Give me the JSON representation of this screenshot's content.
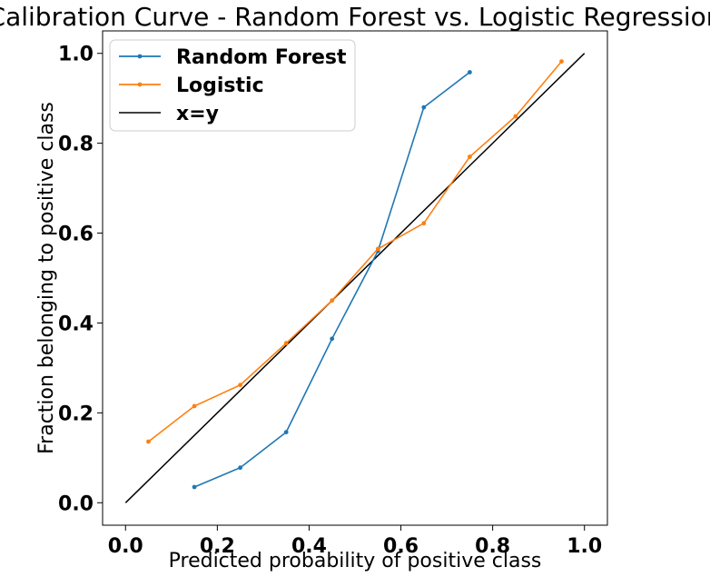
{
  "chart_data": {
    "type": "line",
    "title": "Calibration Curve - Random Forest vs. Logistic Regression",
    "xlabel": "Predicted probability of positive class",
    "ylabel": "Fraction belonging to positive class",
    "xlim": [
      -0.05,
      1.05
    ],
    "ylim": [
      -0.05,
      1.05
    ],
    "xticks": [
      0.0,
      0.2,
      0.4,
      0.6,
      0.8,
      1.0
    ],
    "yticks": [
      0.0,
      0.2,
      0.4,
      0.6,
      0.8,
      1.0
    ],
    "xtick_labels": [
      "0.0",
      "0.2",
      "0.4",
      "0.6",
      "0.8",
      "1.0"
    ],
    "ytick_labels": [
      "0.0",
      "0.2",
      "0.4",
      "0.6",
      "0.8",
      "1.0"
    ],
    "grid": false,
    "legend_position": "top-left",
    "series": [
      {
        "name": "Random Forest",
        "color": "#1f77b4",
        "marker": "dot",
        "x": [
          0.15,
          0.25,
          0.35,
          0.45,
          0.55,
          0.65,
          0.75
        ],
        "y": [
          0.035,
          0.078,
          0.157,
          0.365,
          0.56,
          0.88,
          0.958
        ]
      },
      {
        "name": "Logistic",
        "color": "#ff7f0e",
        "marker": "dot",
        "x": [
          0.05,
          0.15,
          0.25,
          0.35,
          0.45,
          0.55,
          0.65,
          0.75,
          0.85,
          0.95
        ],
        "y": [
          0.136,
          0.215,
          0.262,
          0.355,
          0.45,
          0.565,
          0.622,
          0.77,
          0.86,
          0.982
        ]
      },
      {
        "name": "x=y",
        "color": "#000000",
        "marker": "none",
        "x": [
          0.0,
          1.0
        ],
        "y": [
          0.0,
          1.0
        ]
      }
    ]
  }
}
